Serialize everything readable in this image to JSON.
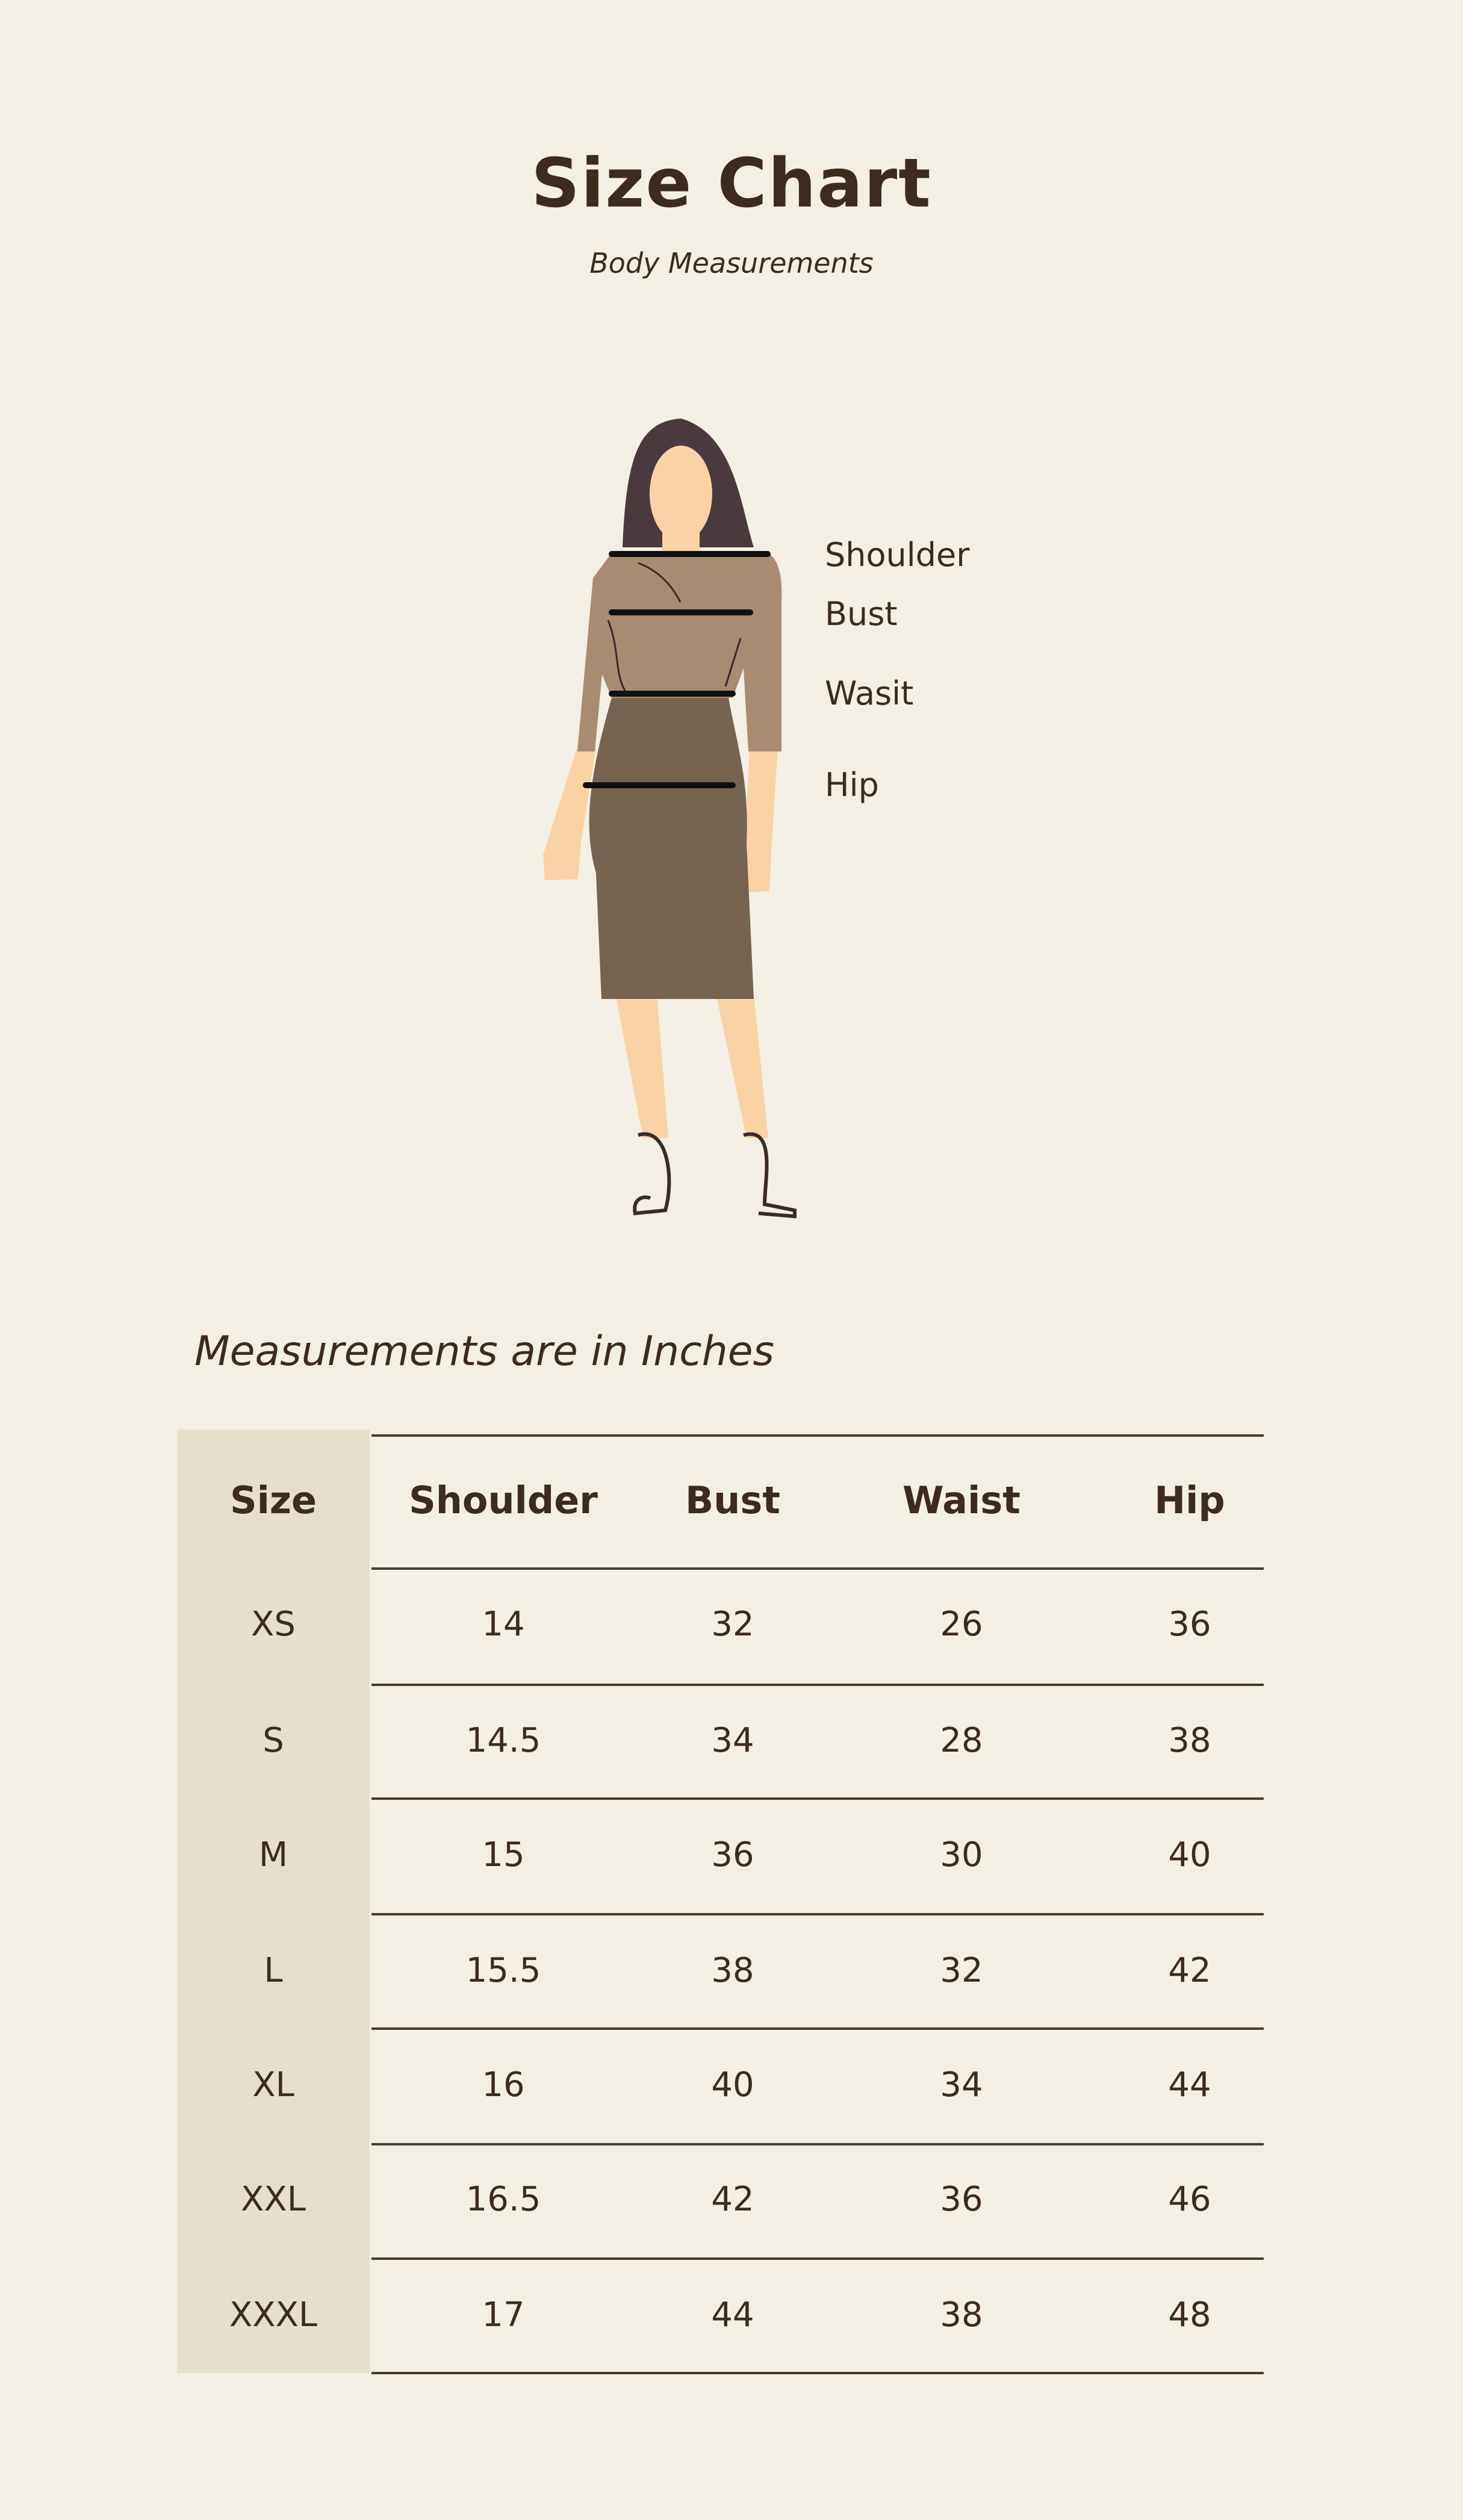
{
  "header": {
    "title": "Size Chart",
    "subtitle": "Body Measurements"
  },
  "figure": {
    "labels": [
      "Shoulder",
      "Bust",
      "Wasit",
      "Hip"
    ],
    "colors": {
      "blouse": "#a88b73",
      "skirt": "#776450",
      "skin": "#f9d3a5",
      "hair": "#4a3a3e",
      "lines": "#111111"
    }
  },
  "units_note": "Measurements are in Inches",
  "table": {
    "columns": [
      "Size",
      "Shoulder",
      "Bust",
      "Waist",
      "Hip"
    ],
    "rows": [
      [
        "XS",
        "14",
        "32",
        "26",
        "36"
      ],
      [
        "S",
        "14.5",
        "34",
        "28",
        "38"
      ],
      [
        "M",
        "15",
        "36",
        "30",
        "40"
      ],
      [
        "L",
        "15.5",
        "38",
        "32",
        "42"
      ],
      [
        "XL",
        "16",
        "40",
        "34",
        "44"
      ],
      [
        "XXL",
        "16.5",
        "42",
        "36",
        "46"
      ],
      [
        "XXXL",
        "17",
        "44",
        "38",
        "48"
      ]
    ]
  },
  "colors": {
    "background": "#f3efe4",
    "size_column": "#e6dfcc",
    "text": "#3d2b1f"
  }
}
